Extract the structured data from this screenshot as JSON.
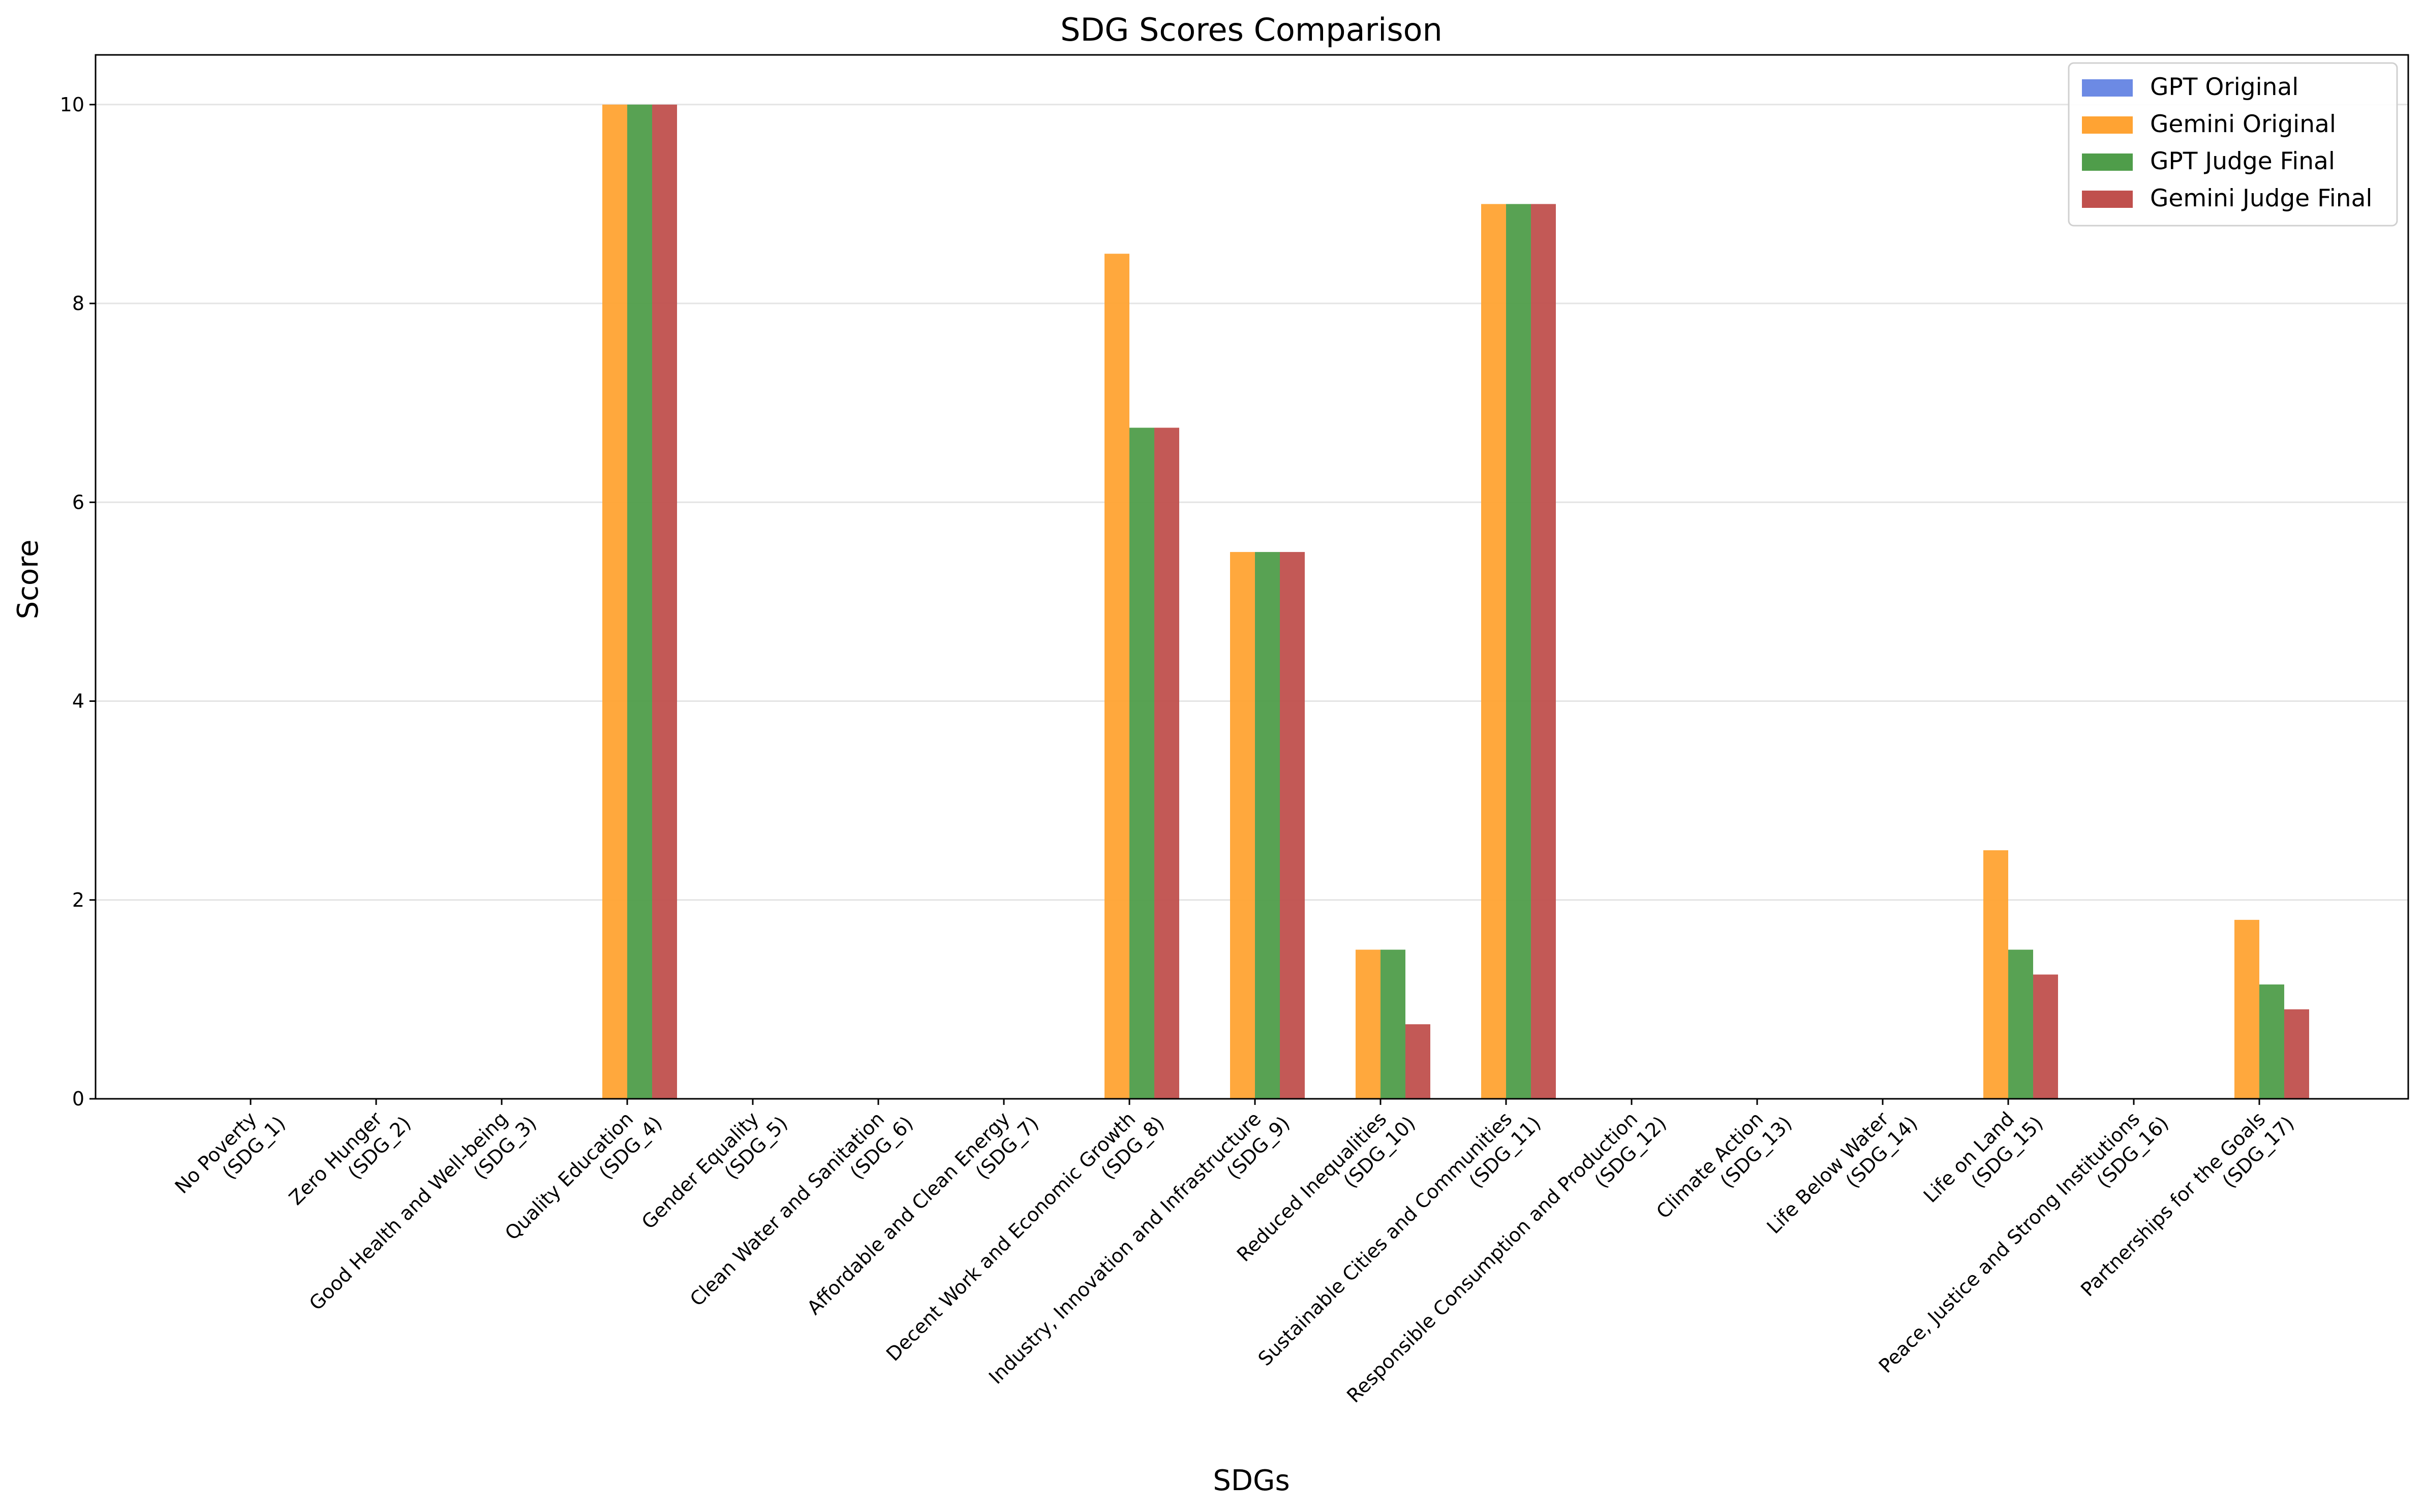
{
  "chart_data": {
    "type": "bar",
    "title": "SDG Scores Comparison",
    "xlabel": "SDGs",
    "ylabel": "Score",
    "ylim": [
      0,
      10.5
    ],
    "yticks": [
      "0",
      "2",
      "4",
      "6",
      "8",
      "10"
    ],
    "grid": "horizontal",
    "legend_position": "top-right",
    "categories": [
      [
        "No Poverty",
        "(SDG_1)"
      ],
      [
        "Zero Hunger",
        "(SDG_2)"
      ],
      [
        "Good Health and Well-being",
        "(SDG_3)"
      ],
      [
        "Quality Education",
        "(SDG_4)"
      ],
      [
        "Gender Equality",
        "(SDG_5)"
      ],
      [
        "Clean Water and Sanitation",
        "(SDG_6)"
      ],
      [
        "Affordable and Clean Energy",
        "(SDG_7)"
      ],
      [
        "Decent Work and Economic Growth",
        "(SDG_8)"
      ],
      [
        "Industry, Innovation and Infrastructure",
        "(SDG_9)"
      ],
      [
        "Reduced Inequalities",
        "(SDG_10)"
      ],
      [
        "Sustainable Cities and Communities",
        "(SDG_11)"
      ],
      [
        "Responsible Consumption and Production",
        "(SDG_12)"
      ],
      [
        "Climate Action",
        "(SDG_13)"
      ],
      [
        "Life Below Water",
        "(SDG_14)"
      ],
      [
        "Life on Land",
        "(SDG_15)"
      ],
      [
        "Peace, Justice and Strong Institutions",
        "(SDG_16)"
      ],
      [
        "Partnerships for the Goals",
        "(SDG_17)"
      ]
    ],
    "series": [
      {
        "name": "GPT Original",
        "color": "#6c8ae4",
        "values": [
          0,
          0,
          0,
          0,
          0,
          0,
          0,
          0,
          0,
          0,
          0,
          0,
          0,
          0,
          0,
          0,
          0
        ]
      },
      {
        "name": "Gemini Original",
        "color": "#ffa333",
        "values": [
          0,
          0,
          0,
          10,
          0,
          0,
          0,
          8.5,
          5.5,
          1.5,
          9,
          0,
          0,
          0,
          2.5,
          0,
          1.8
        ]
      },
      {
        "name": "GPT Judge Final",
        "color": "#4f9d4a",
        "values": [
          0,
          0,
          0,
          10,
          0,
          0,
          0,
          6.75,
          5.5,
          1.5,
          9,
          0,
          0,
          0,
          1.5,
          0,
          1.15
        ]
      },
      {
        "name": "Gemini Judge Final",
        "color": "#c0504d",
        "values": [
          0,
          0,
          0,
          10,
          0,
          0,
          0,
          6.75,
          5.5,
          0.75,
          9,
          0,
          0,
          0,
          1.25,
          0,
          0.9
        ]
      }
    ]
  }
}
